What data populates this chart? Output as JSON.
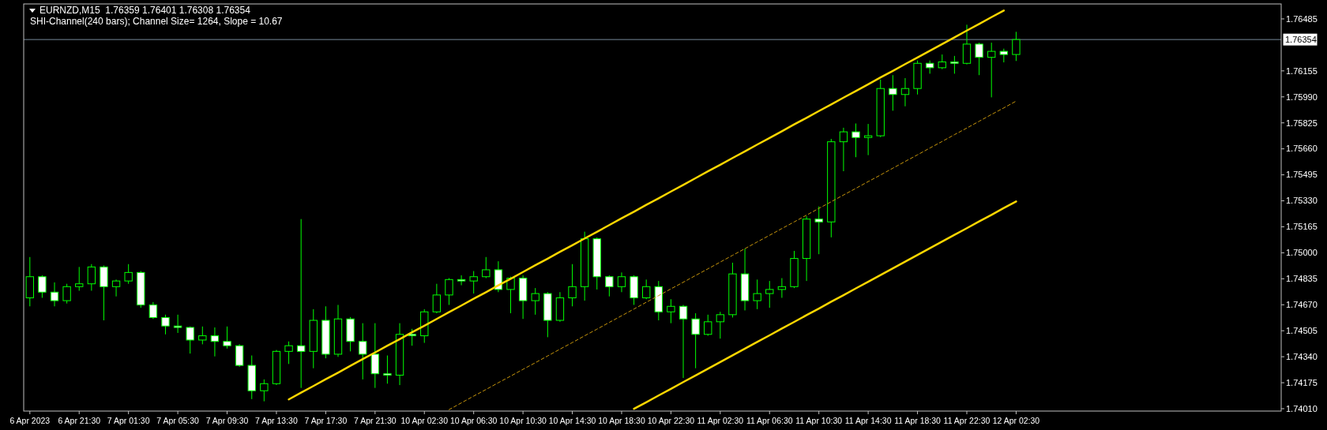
{
  "chart_data": {
    "type": "candlestick",
    "title": "EURNZD,M15  1.76359 1.76401 1.76308 1.76354",
    "subtitle": "SHI-Channel(240 bars); Channel Size= 1264, Slope = 10.67",
    "categories": [
      "6 Apr 2023",
      null,
      null,
      null,
      "6 Apr 21:30",
      null,
      null,
      null,
      "7 Apr 01:30",
      null,
      null,
      null,
      "7 Apr 05:30",
      null,
      null,
      null,
      "7 Apr 09:30",
      null,
      null,
      null,
      "7 Apr 13:30",
      null,
      null,
      null,
      "7 Apr 17:30",
      null,
      null,
      null,
      "7 Apr 21:30",
      null,
      null,
      null,
      "10 Apr 02:30",
      null,
      null,
      null,
      "10 Apr 06:30",
      null,
      null,
      null,
      "10 Apr 10:30",
      null,
      null,
      null,
      "10 Apr 14:30",
      null,
      null,
      null,
      "10 Apr 18:30",
      null,
      null,
      null,
      "10 Apr 22:30",
      null,
      null,
      null,
      "11 Apr 02:30",
      null,
      null,
      null,
      "11 Apr 06:30",
      null,
      null,
      null,
      "11 Apr 10:30",
      null,
      null,
      null,
      "11 Apr 14:30",
      null,
      null,
      null,
      "11 Apr 18:30",
      null,
      null,
      null,
      "11 Apr 22:30",
      null,
      null,
      null,
      "12 Apr 02:30",
      null,
      null,
      null,
      null,
      null,
      null,
      null,
      null,
      null,
      null,
      null,
      null,
      null,
      null,
      null,
      null,
      null,
      null,
      null,
      null,
      null
    ],
    "color": "#00ff00",
    "ohlc": [
      [
        1.74714,
        1.74973,
        1.7466,
        1.74848
      ],
      [
        1.74848,
        1.74857,
        1.74714,
        1.7475
      ],
      [
        1.7475,
        1.74812,
        1.7466,
        1.74696
      ],
      [
        1.74696,
        1.74803,
        1.74678,
        1.74785
      ],
      [
        1.74785,
        1.7491,
        1.74759,
        1.74803
      ],
      [
        1.74803,
        1.74928,
        1.74759,
        1.7491
      ],
      [
        1.7491,
        1.74919,
        1.74571,
        1.74785
      ],
      [
        1.74785,
        1.7483,
        1.74723,
        1.74821
      ],
      [
        1.74821,
        1.74928,
        1.74803,
        1.74875
      ],
      [
        1.74875,
        1.74884,
        1.74651,
        1.74669
      ],
      [
        1.74669,
        1.74687,
        1.7458,
        1.74589
      ],
      [
        1.74589,
        1.74607,
        1.74482,
        1.74535
      ],
      [
        1.74535,
        1.74607,
        1.74491,
        1.74526
      ],
      [
        1.74526,
        1.74532,
        1.7436,
        1.74446
      ],
      [
        1.74446,
        1.74532,
        1.74419,
        1.74473
      ],
      [
        1.74473,
        1.74526,
        1.74342,
        1.74437
      ],
      [
        1.74437,
        1.74532,
        1.74392,
        1.7441
      ],
      [
        1.7441,
        1.74419,
        1.74276,
        1.74285
      ],
      [
        1.74285,
        1.74348,
        1.74071,
        1.74124
      ],
      [
        1.74124,
        1.74196,
        1.74057,
        1.74169
      ],
      [
        1.74169,
        1.74383,
        1.7416,
        1.74374
      ],
      [
        1.74374,
        1.74437,
        1.74294,
        1.7441
      ],
      [
        1.7441,
        1.75214,
        1.74142,
        1.74374
      ],
      [
        1.74374,
        1.74642,
        1.74267,
        1.74571
      ],
      [
        1.74571,
        1.7466,
        1.7433,
        1.74356
      ],
      [
        1.74356,
        1.74669,
        1.74339,
        1.7458
      ],
      [
        1.7458,
        1.74592,
        1.74374,
        1.74437
      ],
      [
        1.74437,
        1.74553,
        1.74196,
        1.74356
      ],
      [
        1.74356,
        1.74553,
        1.74142,
        1.74232
      ],
      [
        1.74232,
        1.74348,
        1.74169,
        1.74223
      ],
      [
        1.74223,
        1.74553,
        1.7416,
        1.74482
      ],
      [
        1.74482,
        1.74517,
        1.7441,
        1.74473
      ],
      [
        1.74473,
        1.74642,
        1.74428,
        1.74625
      ],
      [
        1.74625,
        1.74803,
        1.74616,
        1.74732
      ],
      [
        1.74732,
        1.74839,
        1.74669,
        1.7483
      ],
      [
        1.7483,
        1.74857,
        1.74794,
        1.74821
      ],
      [
        1.74821,
        1.74884,
        1.74741,
        1.74848
      ],
      [
        1.74848,
        1.74973,
        1.74839,
        1.74892
      ],
      [
        1.74892,
        1.74946,
        1.7475,
        1.74767
      ],
      [
        1.74767,
        1.74848,
        1.74616,
        1.74839
      ],
      [
        1.74839,
        1.74857,
        1.7458,
        1.74696
      ],
      [
        1.74696,
        1.74776,
        1.74607,
        1.74741
      ],
      [
        1.74741,
        1.7475,
        1.74464,
        1.74571
      ],
      [
        1.74571,
        1.7475,
        1.74562,
        1.74714
      ],
      [
        1.74714,
        1.74928,
        1.7466,
        1.74785
      ],
      [
        1.74785,
        1.75134,
        1.74696,
        1.75089
      ],
      [
        1.75089,
        1.75098,
        1.74767,
        1.74848
      ],
      [
        1.74848,
        1.74857,
        1.74723,
        1.74785
      ],
      [
        1.74785,
        1.74875,
        1.7475,
        1.74848
      ],
      [
        1.74848,
        1.74857,
        1.74669,
        1.74714
      ],
      [
        1.74714,
        1.7483,
        1.74705,
        1.74785
      ],
      [
        1.74785,
        1.74821,
        1.74571,
        1.74625
      ],
      [
        1.74625,
        1.74705,
        1.74553,
        1.7466
      ],
      [
        1.7466,
        1.74669,
        1.74205,
        1.7458
      ],
      [
        1.7458,
        1.74616,
        1.74267,
        1.74482
      ],
      [
        1.74482,
        1.74607,
        1.74473,
        1.74562
      ],
      [
        1.74562,
        1.74625,
        1.74455,
        1.74607
      ],
      [
        1.74607,
        1.74937,
        1.74589,
        1.74866
      ],
      [
        1.74866,
        1.75026,
        1.74634,
        1.74696
      ],
      [
        1.74696,
        1.7483,
        1.74642,
        1.74741
      ],
      [
        1.74741,
        1.74821,
        1.74651,
        1.74767
      ],
      [
        1.74767,
        1.74839,
        1.74714,
        1.74785
      ],
      [
        1.74785,
        1.75012,
        1.74776,
        1.74964
      ],
      [
        1.74964,
        1.75232,
        1.74821,
        1.75214
      ],
      [
        1.75214,
        1.75294,
        1.74991,
        1.75196
      ],
      [
        1.75196,
        1.75723,
        1.75098,
        1.75705
      ],
      [
        1.75705,
        1.75794,
        1.75518,
        1.75768
      ],
      [
        1.75768,
        1.75821,
        1.75607,
        1.75732
      ],
      [
        1.75732,
        1.75818,
        1.7562,
        1.75743
      ],
      [
        1.75743,
        1.761,
        1.75734,
        1.76043
      ],
      [
        1.76043,
        1.76128,
        1.75902,
        1.76005
      ],
      [
        1.76005,
        1.76109,
        1.7593,
        1.76043
      ],
      [
        1.76043,
        1.76221,
        1.76005,
        1.76203
      ],
      [
        1.76203,
        1.76221,
        1.76137,
        1.76175
      ],
      [
        1.76175,
        1.76259,
        1.76166,
        1.76212
      ],
      [
        1.76212,
        1.7625,
        1.76137,
        1.76203
      ],
      [
        1.76203,
        1.76448,
        1.76196,
        1.76325
      ],
      [
        1.76325,
        1.76334,
        1.76128,
        1.76241
      ],
      [
        1.76241,
        1.76334,
        1.75987,
        1.76279
      ],
      [
        1.76279,
        1.76296,
        1.76209,
        1.76259
      ],
      [
        1.76259,
        1.76403,
        1.76218,
        1.76354
      ],
      null,
      null,
      null,
      null,
      null,
      null,
      null,
      null,
      null,
      null,
      null,
      null,
      null,
      null,
      null,
      null,
      null,
      null,
      null,
      null,
      null
    ],
    "series": [
      {
        "type": "line",
        "color": "#ffd700",
        "values": [
          null,
          null,
          null,
          null,
          null,
          null,
          null,
          null,
          null,
          null,
          null,
          null,
          null,
          null,
          null,
          null,
          null,
          null,
          null,
          null,
          null,
          1.74069,
          1.74112,
          1.74154,
          1.74197,
          1.74239,
          1.74282,
          1.74325,
          1.74367,
          1.7441,
          1.74452,
          1.74495,
          1.74537,
          1.7458,
          1.74623,
          1.74665,
          1.74708,
          1.7475,
          1.74793,
          1.74835,
          1.74878,
          1.74921,
          1.74963,
          1.75006,
          1.75048,
          1.75091,
          1.75133,
          1.75176,
          1.75219,
          1.75261,
          1.75304,
          1.75346,
          1.75389,
          1.75431,
          1.75474,
          1.75517,
          1.75559,
          1.75602,
          1.75644,
          1.75687,
          1.75729,
          1.75772,
          1.75815,
          1.75857,
          1.759,
          1.75942,
          1.75985,
          1.76027,
          1.7607,
          1.76113,
          1.76155,
          1.76198,
          1.7624,
          1.76283,
          1.76325,
          1.76368,
          1.76411,
          1.76453,
          1.76496,
          1.76538,
          null,
          null,
          null,
          null,
          null,
          null,
          null,
          null,
          null,
          null,
          null,
          null,
          null,
          null,
          null,
          null,
          null,
          null,
          null,
          null,
          null,
          null
        ]
      },
      {
        "type": "line",
        "color": "#c8960c",
        "line_style": "dashed",
        "values": [
          null,
          null,
          null,
          null,
          null,
          null,
          null,
          null,
          null,
          null,
          null,
          null,
          null,
          null,
          null,
          null,
          null,
          null,
          null,
          null,
          null,
          null,
          null,
          null,
          null,
          null,
          null,
          null,
          null,
          null,
          null,
          null,
          null,
          null,
          1.74004,
          1.74047,
          1.7409,
          1.74132,
          1.74175,
          1.74217,
          1.7426,
          1.74302,
          1.74345,
          1.74388,
          1.7443,
          1.74473,
          1.74515,
          1.74558,
          1.746,
          1.74643,
          1.74686,
          1.74728,
          1.74771,
          1.74813,
          1.74856,
          1.74898,
          1.74941,
          1.74984,
          1.75026,
          1.75069,
          1.75111,
          1.75154,
          1.75196,
          1.75239,
          1.75282,
          1.75324,
          1.75367,
          1.75409,
          1.75452,
          1.75494,
          1.75537,
          1.7558,
          1.75622,
          1.75665,
          1.75707,
          1.7575,
          1.75792,
          1.75835,
          1.75878,
          1.7592,
          1.75963,
          null,
          null,
          null,
          null,
          null,
          null,
          null,
          null,
          null,
          null,
          null,
          null,
          null,
          null,
          null,
          null,
          null,
          null,
          null,
          null,
          null
        ]
      },
      {
        "type": "line",
        "color": "#ffd700",
        "values": [
          null,
          null,
          null,
          null,
          null,
          null,
          null,
          null,
          null,
          null,
          null,
          null,
          null,
          null,
          null,
          null,
          null,
          null,
          null,
          null,
          null,
          null,
          null,
          null,
          null,
          null,
          null,
          null,
          null,
          null,
          null,
          null,
          null,
          null,
          null,
          null,
          null,
          null,
          null,
          null,
          null,
          null,
          null,
          null,
          null,
          null,
          null,
          null,
          null,
          1.74009,
          1.74051,
          1.74094,
          1.74136,
          1.74179,
          1.74221,
          1.74264,
          1.74306,
          1.74349,
          1.74391,
          1.74434,
          1.74476,
          1.74519,
          1.74561,
          1.74604,
          1.74646,
          1.74689,
          1.74731,
          1.74774,
          1.74816,
          1.74859,
          1.74901,
          1.74944,
          1.74986,
          1.75029,
          1.75071,
          1.75114,
          1.75156,
          1.75199,
          1.75241,
          1.75284,
          1.75326,
          null,
          null,
          null,
          null,
          null,
          null,
          null,
          null,
          null,
          null,
          null,
          null,
          null,
          null,
          null,
          null,
          null,
          null,
          null,
          null,
          null
        ]
      }
    ],
    "ylim": [
      1.73995,
      1.7658
    ],
    "yticks": [
      {
        "value": 1.7401,
        "label": "1.74010"
      },
      {
        "value": 1.74175,
        "label": "1.74175"
      },
      {
        "value": 1.7434,
        "label": "1.74340"
      },
      {
        "value": 1.74505,
        "label": "1.74505"
      },
      {
        "value": 1.7467,
        "label": "1.74670"
      },
      {
        "value": 1.74835,
        "label": "1.74835"
      },
      {
        "value": 1.75,
        "label": "1.75000"
      },
      {
        "value": 1.75165,
        "label": "1.75165"
      },
      {
        "value": 1.7533,
        "label": "1.75330"
      },
      {
        "value": 1.75495,
        "label": "1.75495"
      },
      {
        "value": 1.7566,
        "label": "1.75660"
      },
      {
        "value": 1.75825,
        "label": "1.75825"
      },
      {
        "value": 1.7599,
        "label": "1.75990"
      },
      {
        "value": 1.76155,
        "label": "1.76155"
      },
      {
        "value": 1.76485,
        "label": "1.76485"
      }
    ],
    "ref_lines": [
      {
        "axis": "y",
        "value": 1.76354,
        "label": "1.76354",
        "color": "#778899"
      }
    ]
  }
}
